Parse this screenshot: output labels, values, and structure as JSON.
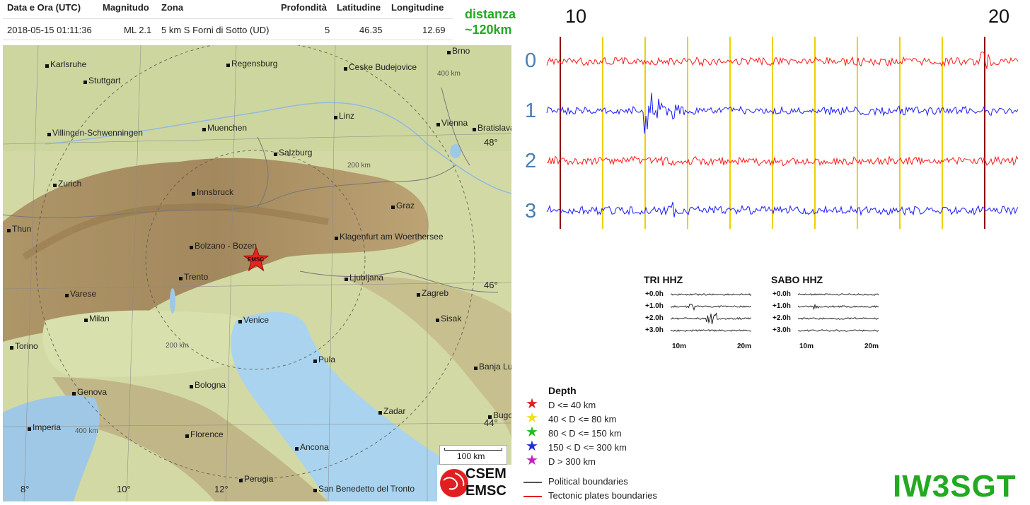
{
  "table": {
    "headers": [
      "Data e Ora (UTC)",
      "Magnitudo",
      "Zona",
      "Profondità",
      "Latitudine",
      "Longitudine"
    ],
    "row": [
      "2018-05-15 01:11:36",
      "ML 2.1",
      "5 km S Forni di Sotto (UD)",
      "5",
      "46.35",
      "12.69"
    ]
  },
  "distance": {
    "line1": "distanza",
    "line2": "~120km"
  },
  "map": {
    "cities": [
      "Karlsruhe",
      "Regensburg",
      "Brno",
      "Stuttgart",
      "Ceske Budejovice",
      "Linz",
      "Vienna",
      "Bratislava",
      "Villingen-Schwenningen",
      "Muenchen",
      "Salzburg",
      "Zurich",
      "Innsbruck",
      "Graz",
      "Thun",
      "Bolzano - Bozen",
      "Klagenfurt am Woerthersee",
      "Trento",
      "Ljubljana",
      "Varese",
      "Zagreb",
      "Milan",
      "Venice",
      "Sisak",
      "Torino",
      "Pula",
      "Banja Lu",
      "Genova",
      "Bologna",
      "Zadar",
      "Bugo",
      "Imperia",
      "Florence",
      "Ancona",
      "Perugia",
      "San Benedetto del Tronto"
    ],
    "rings": [
      "400 km",
      "200 km",
      "200 km",
      "400 km"
    ],
    "lat_labels": [
      "48°",
      "46°",
      "44°"
    ],
    "lon_labels": [
      "8°",
      "10°",
      "12°"
    ],
    "star_label": "EMSC",
    "scale": "100 km",
    "logo_top": "CSEM",
    "logo_bottom": "EMSC"
  },
  "legend": {
    "title": "Depth",
    "items": [
      {
        "label": "D <= 40 km",
        "color": "#e02020"
      },
      {
        "label": "40 < D <= 80 km",
        "color": "#f0e020"
      },
      {
        "label": "80 < D <= 150 km",
        "color": "#20c020"
      },
      {
        "label": "150 < D <= 300 km",
        "color": "#2030d0"
      },
      {
        "label": "D > 300 km",
        "color": "#c020c0"
      }
    ],
    "lines": [
      {
        "label": "Political boundaries",
        "color": "#555555"
      },
      {
        "label": "Tectonic plates boundaries",
        "color": "#e02020"
      }
    ]
  },
  "seismogram": {
    "tick_labels": [
      "10",
      "20"
    ],
    "traces": [
      {
        "label": "0",
        "color": "#ff1a1a"
      },
      {
        "label": "1",
        "color": "#1a1aff"
      },
      {
        "label": "2",
        "color": "#ff1a1a"
      },
      {
        "label": "3",
        "color": "#1a1aff"
      }
    ]
  },
  "mini": [
    {
      "title": "TRI HHZ",
      "rows": [
        "+0.0h",
        "+1.0h",
        "+2.0h",
        "+3.0h"
      ],
      "xticks": [
        "10m",
        "20m"
      ]
    },
    {
      "title": "SABO HHZ",
      "rows": [
        "+0.0h",
        "+1.0h",
        "+2.0h",
        "+3.0h"
      ],
      "xticks": [
        "10m",
        "20m"
      ]
    }
  ],
  "callsign": "IW3SGT"
}
